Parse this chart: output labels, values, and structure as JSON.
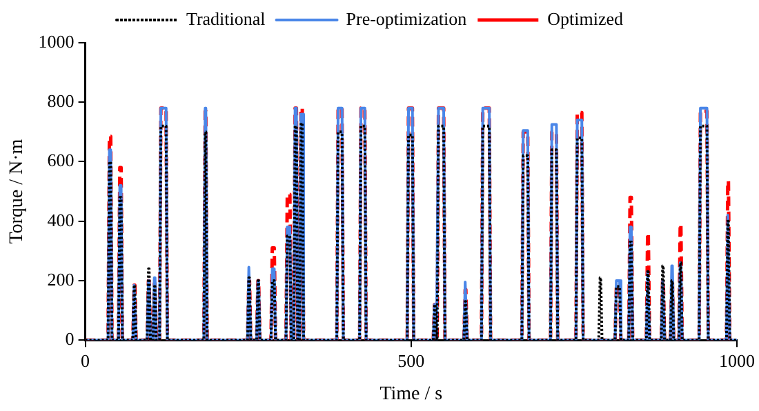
{
  "chart_data": {
    "type": "line",
    "xlabel": "Time / s",
    "ylabel": "Torque / N·m",
    "xlim": [
      0,
      1000
    ],
    "xticks": [
      0,
      500,
      1000
    ],
    "ylim": [
      0,
      1000
    ],
    "yticks": [
      0,
      200,
      400,
      600,
      800,
      1000
    ],
    "legend": "top",
    "marker": "none",
    "x": [
      0,
      35,
      37,
      39,
      41,
      51,
      53,
      55,
      57,
      73,
      75,
      76,
      78,
      95,
      97,
      98,
      100,
      104,
      106,
      107,
      109,
      114,
      116,
      124,
      126,
      182,
      184,
      185,
      187,
      249,
      251,
      252,
      254,
      263,
      265,
      266,
      268,
      285,
      287,
      290,
      292,
      308,
      310,
      314,
      316,
      320,
      322,
      324,
      326,
      329,
      331,
      333,
      335,
      386,
      388,
      394,
      396,
      421,
      423,
      429,
      431,
      494,
      496,
      502,
      504,
      534,
      536,
      537,
      539,
      540,
      542,
      550,
      552,
      581,
      583,
      584,
      586,
      608,
      610,
      620,
      622,
      670,
      672,
      679,
      681,
      714,
      716,
      723,
      725,
      753,
      755,
      762,
      764,
      788,
      790,
      791,
      793,
      813,
      815,
      820,
      822,
      834,
      836,
      838,
      840,
      861,
      863,
      864,
      866,
      884,
      886,
      887,
      889,
      898,
      900,
      901,
      903,
      911,
      913,
      914,
      916,
      942,
      944,
      954,
      956,
      984,
      986,
      987,
      989,
      1000
    ],
    "series": [
      {
        "name": "Traditional",
        "color": "#000000",
        "line_style": "dotted",
        "values": [
          0,
          0,
          600,
          600,
          0,
          0,
          480,
          480,
          0,
          0,
          185,
          185,
          0,
          0,
          240,
          240,
          0,
          0,
          180,
          180,
          0,
          0,
          720,
          720,
          0,
          0,
          700,
          700,
          0,
          0,
          210,
          210,
          0,
          0,
          200,
          200,
          0,
          0,
          200,
          200,
          0,
          0,
          350,
          350,
          0,
          0,
          720,
          720,
          0,
          0,
          730,
          730,
          0,
          0,
          700,
          700,
          0,
          0,
          720,
          720,
          0,
          0,
          690,
          690,
          0,
          0,
          120,
          120,
          0,
          0,
          720,
          720,
          0,
          0,
          130,
          130,
          0,
          0,
          720,
          720,
          0,
          0,
          620,
          620,
          0,
          0,
          640,
          640,
          0,
          0,
          680,
          680,
          0,
          0,
          210,
          210,
          0,
          0,
          180,
          180,
          0,
          0,
          330,
          330,
          0,
          0,
          230,
          230,
          0,
          0,
          250,
          250,
          0,
          0,
          200,
          200,
          0,
          0,
          260,
          260,
          0,
          0,
          720,
          720,
          0,
          0,
          400,
          400,
          0,
          0
        ]
      },
      {
        "name": "Pre-optimization",
        "color": "#4a86e8",
        "line_style": "solid",
        "values": [
          0,
          0,
          640,
          640,
          0,
          0,
          520,
          520,
          0,
          0,
          185,
          185,
          0,
          0,
          200,
          200,
          0,
          0,
          210,
          210,
          0,
          0,
          780,
          780,
          0,
          0,
          780,
          780,
          0,
          0,
          245,
          245,
          0,
          0,
          200,
          200,
          0,
          0,
          240,
          240,
          0,
          0,
          380,
          380,
          0,
          0,
          780,
          780,
          0,
          0,
          760,
          760,
          0,
          0,
          780,
          780,
          0,
          0,
          780,
          780,
          0,
          0,
          780,
          780,
          0,
          0,
          120,
          120,
          0,
          0,
          780,
          780,
          0,
          0,
          195,
          195,
          0,
          0,
          780,
          780,
          0,
          0,
          705,
          705,
          0,
          0,
          725,
          725,
          0,
          0,
          740,
          740,
          0,
          0,
          0,
          0,
          0,
          0,
          200,
          200,
          0,
          0,
          380,
          380,
          0,
          0,
          230,
          230,
          0,
          0,
          200,
          200,
          0,
          0,
          250,
          250,
          0,
          0,
          260,
          260,
          0,
          0,
          780,
          780,
          0,
          0,
          420,
          420,
          0,
          0
        ]
      },
      {
        "name": "Optimized",
        "color": "#ff0000",
        "line_style": "dashed",
        "values": [
          0,
          0,
          685,
          685,
          0,
          0,
          580,
          580,
          0,
          0,
          185,
          185,
          0,
          0,
          200,
          200,
          0,
          0,
          190,
          190,
          0,
          0,
          780,
          780,
          0,
          0,
          770,
          770,
          0,
          0,
          200,
          200,
          0,
          0,
          200,
          200,
          0,
          0,
          310,
          310,
          0,
          0,
          490,
          490,
          0,
          0,
          780,
          780,
          0,
          0,
          780,
          780,
          0,
          0,
          780,
          780,
          0,
          0,
          780,
          780,
          0,
          0,
          780,
          780,
          0,
          0,
          120,
          120,
          0,
          0,
          780,
          780,
          0,
          0,
          170,
          170,
          0,
          0,
          780,
          780,
          0,
          0,
          700,
          700,
          0,
          0,
          700,
          700,
          0,
          0,
          765,
          765,
          0,
          0,
          0,
          0,
          0,
          0,
          180,
          180,
          0,
          0,
          480,
          480,
          0,
          0,
          360,
          360,
          0,
          0,
          200,
          200,
          0,
          0,
          200,
          200,
          0,
          0,
          390,
          390,
          0,
          0,
          770,
          770,
          0,
          0,
          535,
          535,
          0,
          0
        ]
      }
    ]
  }
}
